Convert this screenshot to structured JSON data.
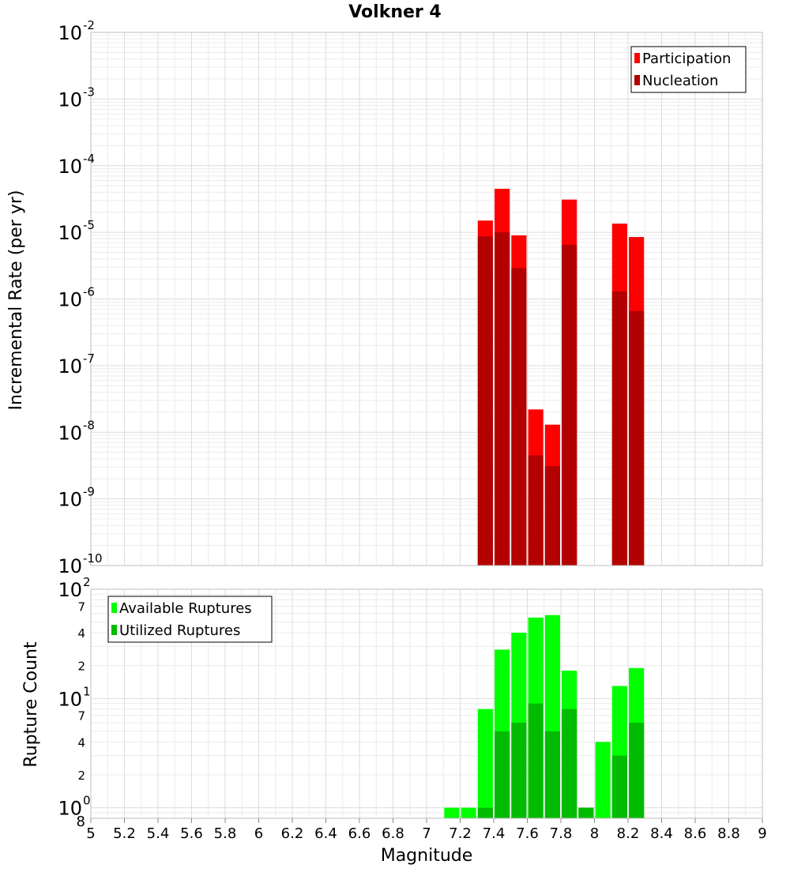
{
  "chart_data": [
    {
      "type": "bar",
      "title": "Volkner 4",
      "xlabel": "",
      "ylabel": "Incremental Rate (per yr)",
      "xlim": [
        5,
        9
      ],
      "ylim": [
        1e-10,
        0.01
      ],
      "y_scale": "log",
      "y_tick_exponents": [
        "-10",
        "-9",
        "-8",
        "-7",
        "-6",
        "-5",
        "-4",
        "-3",
        "-2"
      ],
      "y_tick_base": "10",
      "grid": true,
      "bar_width": 0.09,
      "legend_position": "top-right",
      "series": [
        {
          "name": "Participation",
          "color": "#ff0000",
          "x": [
            7.35,
            7.45,
            7.55,
            7.65,
            7.75,
            7.85,
            8.15,
            8.25
          ],
          "values": [
            1.5e-05,
            4.5e-05,
            9e-06,
            2.2e-08,
            1.3e-08,
            3.1e-05,
            1.35e-05,
            8.5e-06
          ]
        },
        {
          "name": "Nucleation",
          "color": "#b30000",
          "x": [
            7.35,
            7.45,
            7.55,
            7.65,
            7.75,
            7.85,
            8.15,
            8.25
          ],
          "values": [
            8.7e-06,
            1e-05,
            2.9e-06,
            4.5e-09,
            3.1e-09,
            6.5e-06,
            1.3e-06,
            6.6e-07
          ]
        }
      ]
    },
    {
      "type": "bar",
      "title": "",
      "xlabel": "Magnitude",
      "ylabel": "Rupture Count",
      "xlim": [
        5,
        9
      ],
      "x_ticks": [
        "5",
        "5.2",
        "5.4",
        "5.6",
        "5.8",
        "6",
        "6.2",
        "6.4",
        "6.6",
        "6.8",
        "7",
        "7.2",
        "7.4",
        "7.6",
        "7.8",
        "8",
        "8.2",
        "8.4",
        "8.6",
        "8.8",
        "9"
      ],
      "ylim": [
        0.8,
        100
      ],
      "y_scale": "log",
      "y_major_ticks": [
        {
          "value": 1,
          "base": "10",
          "exp": "0"
        },
        {
          "value": 10,
          "base": "10",
          "exp": "1"
        },
        {
          "value": 100,
          "base": "10",
          "exp": "2"
        }
      ],
      "y_minor_ticks": [
        {
          "value": 0.8,
          "label": "8"
        },
        {
          "value": 2,
          "label": "2"
        },
        {
          "value": 4,
          "label": "4"
        },
        {
          "value": 7,
          "label": "7"
        },
        {
          "value": 20,
          "label": "2"
        },
        {
          "value": 40,
          "label": "4"
        },
        {
          "value": 70,
          "label": "7"
        }
      ],
      "grid": true,
      "bar_width": 0.09,
      "legend_position": "top-left",
      "series": [
        {
          "name": "Available Ruptures",
          "color": "#00ff00",
          "x": [
            7.15,
            7.25,
            7.35,
            7.45,
            7.55,
            7.65,
            7.75,
            7.85,
            7.95,
            8.05,
            8.15,
            8.25
          ],
          "values": [
            1,
            1,
            8,
            28,
            40,
            55,
            58,
            18,
            1,
            4,
            13,
            19
          ]
        },
        {
          "name": "Utilized Ruptures",
          "color": "#00bb00",
          "x": [
            7.15,
            7.25,
            7.35,
            7.45,
            7.55,
            7.65,
            7.75,
            7.85,
            7.95,
            8.05,
            8.15,
            8.25
          ],
          "values": [
            0,
            0,
            1,
            5,
            6,
            9,
            5,
            8,
            1,
            0,
            3,
            6
          ]
        }
      ]
    }
  ]
}
